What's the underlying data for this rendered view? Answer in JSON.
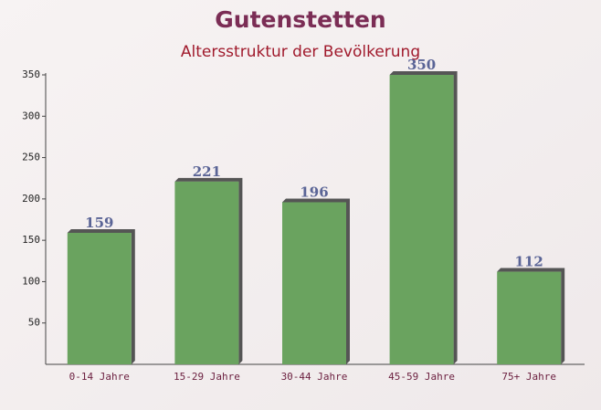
{
  "chart_data": {
    "type": "bar",
    "title": "Gutenstetten",
    "subtitle": "Altersstruktur der Bevölkerung",
    "categories": [
      "0-14 Jahre",
      "15-29 Jahre",
      "30-44 Jahre",
      "45-59 Jahre",
      "75+ Jahre"
    ],
    "values": [
      159,
      221,
      196,
      350,
      112
    ],
    "color": "#6aa35f",
    "ylim": [
      0,
      350
    ],
    "yticks": [
      50,
      100,
      150,
      200,
      250,
      300,
      350
    ]
  }
}
